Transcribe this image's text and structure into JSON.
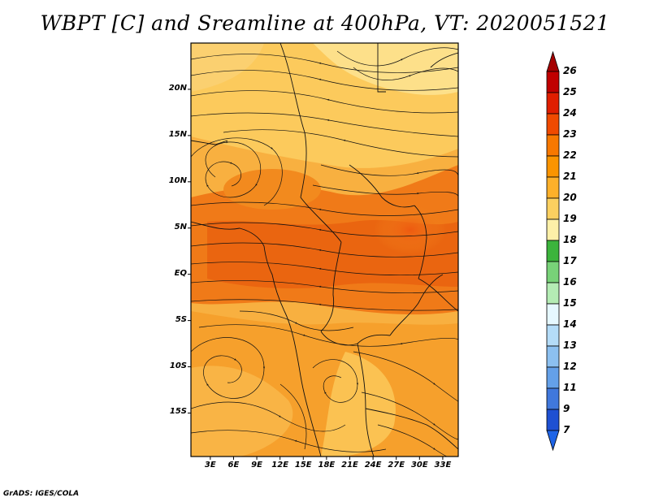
{
  "title": "WBPT [C] and Sreamline at 400hPa, VT: 2020051521",
  "footer": "GrADS: IGES/COLA",
  "map": {
    "lat_labels": [
      "20N",
      "15N",
      "10N",
      "5N",
      "EQ",
      "5S",
      "10S",
      "15S"
    ],
    "lon_labels": [
      "3E",
      "6E",
      "9E",
      "12E",
      "15E",
      "18E",
      "21E",
      "24E",
      "27E",
      "30E",
      "33E"
    ],
    "lat_values": [
      20,
      15,
      10,
      5,
      0,
      -5,
      -10,
      -15
    ],
    "lon_values": [
      3,
      6,
      9,
      12,
      15,
      18,
      21,
      24,
      27,
      30,
      33
    ],
    "lon_range": [
      0.5,
      35
    ],
    "lat_range": [
      -19.7,
      25
    ]
  },
  "colorbar": {
    "labels": [
      "26",
      "25",
      "24",
      "23",
      "22",
      "21",
      "20",
      "19",
      "18",
      "17",
      "16",
      "15",
      "14",
      "13",
      "12",
      "11",
      "9",
      "7"
    ],
    "colors": [
      "#a50000",
      "#c00000",
      "#e01e00",
      "#f04a00",
      "#f77800",
      "#fa9400",
      "#fdb02a",
      "#fcd060",
      "#fdf0a8",
      "#3cb43c",
      "#78d278",
      "#b4ecb4",
      "#e6f8ff",
      "#b4dcf8",
      "#8cc0f0",
      "#64a0e8",
      "#4078dc",
      "#1e50d2",
      "#1e64e6"
    ]
  }
}
